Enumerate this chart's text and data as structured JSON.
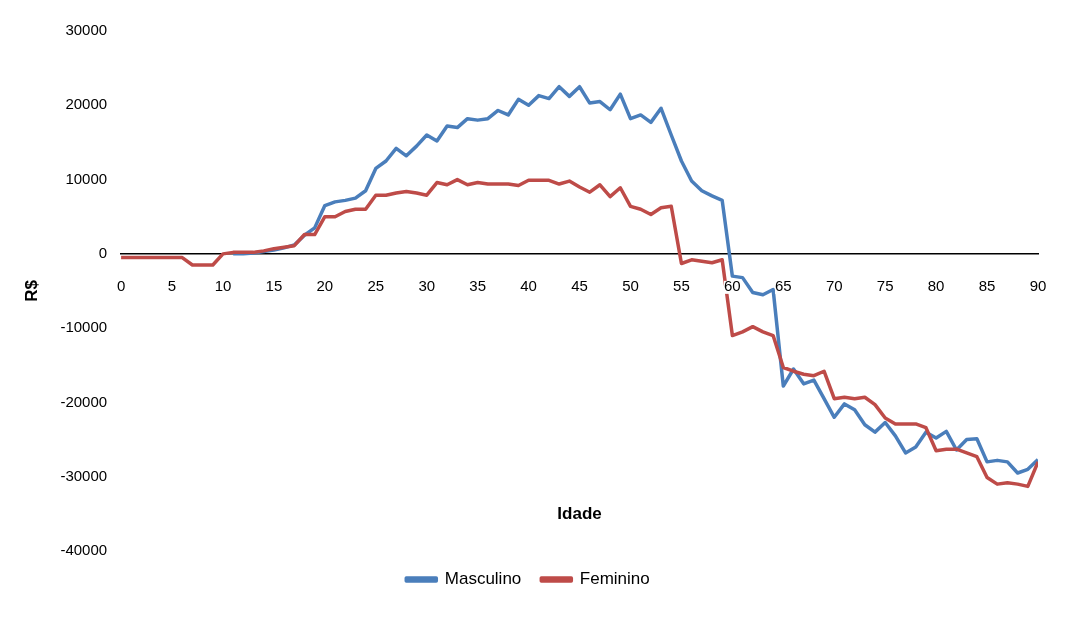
{
  "chart_data": {
    "type": "line",
    "xlabel": "Idade",
    "ylabel": "R$",
    "x": [
      0,
      1,
      2,
      3,
      4,
      5,
      6,
      7,
      8,
      9,
      10,
      11,
      12,
      13,
      14,
      15,
      16,
      17,
      18,
      19,
      20,
      21,
      22,
      23,
      24,
      25,
      26,
      27,
      28,
      29,
      30,
      31,
      32,
      33,
      34,
      35,
      36,
      37,
      38,
      39,
      40,
      41,
      42,
      43,
      44,
      45,
      46,
      47,
      48,
      49,
      50,
      51,
      52,
      53,
      54,
      55,
      56,
      57,
      58,
      59,
      60,
      61,
      62,
      63,
      64,
      65,
      66,
      67,
      68,
      69,
      70,
      71,
      72,
      73,
      74,
      75,
      76,
      77,
      78,
      79,
      80,
      81,
      82,
      83,
      84,
      85,
      86,
      87,
      88,
      89,
      90
    ],
    "series": [
      {
        "name": "Masculino",
        "color": "#4a7ebb",
        "values": [
          null,
          null,
          null,
          null,
          null,
          null,
          null,
          null,
          null,
          null,
          null,
          0,
          0,
          100,
          300,
          500,
          800,
          1200,
          2500,
          3500,
          6500,
          7000,
          7200,
          7500,
          8500,
          11500,
          12500,
          14200,
          13200,
          14500,
          16000,
          15200,
          17200,
          17000,
          18200,
          18000,
          18200,
          19300,
          18700,
          20800,
          20000,
          21300,
          20900,
          22500,
          21200,
          22500,
          20300,
          20500,
          19400,
          21500,
          18200,
          18700,
          17700,
          19600,
          16000,
          12500,
          9800,
          8500,
          7800,
          7200,
          -3000,
          -3200,
          -5200,
          -5500,
          -4800,
          -17800,
          -15500,
          -17500,
          -17000,
          -19500,
          -22000,
          -20200,
          -21000,
          -23000,
          -24000,
          -22700,
          -24500,
          -26800,
          -26000,
          -24000,
          -24800,
          -23900,
          -26400,
          -25000,
          -24900,
          -28000,
          -27800,
          -28000,
          -29500,
          -29000,
          -27700
        ]
      },
      {
        "name": "Feminino",
        "color": "#be4b48",
        "values": [
          -500,
          -500,
          -500,
          -500,
          -500,
          -500,
          -500,
          -1500,
          -1500,
          -1500,
          0,
          200,
          200,
          200,
          400,
          700,
          900,
          1100,
          2600,
          2600,
          5000,
          5000,
          5700,
          6000,
          6000,
          7900,
          7900,
          8200,
          8400,
          8200,
          7900,
          9600,
          9300,
          10000,
          9300,
          9600,
          9400,
          9400,
          9400,
          9200,
          9900,
          9900,
          9900,
          9400,
          9800,
          9000,
          8300,
          9300,
          7700,
          8900,
          6400,
          6000,
          5300,
          6200,
          6400,
          -1300,
          -800,
          -1000,
          -1200,
          -800,
          -11000,
          -10500,
          -9800,
          -10500,
          -11000,
          -15300,
          -15800,
          -16200,
          -16400,
          -15800,
          -19500,
          -19300,
          -19500,
          -19300,
          -20300,
          -22100,
          -22900,
          -22900,
          -22900,
          -23400,
          -26500,
          -26300,
          -26300,
          -26800,
          -27300,
          -30100,
          -31000,
          -30800,
          -31000,
          -31300,
          -28000
        ]
      }
    ],
    "xlim": [
      0,
      90
    ],
    "xticks": [
      0,
      5,
      10,
      15,
      20,
      25,
      30,
      35,
      40,
      45,
      50,
      55,
      60,
      65,
      70,
      75,
      80,
      85,
      90
    ],
    "ylim": [
      -40000,
      30000
    ],
    "yticks": [
      -40000,
      -30000,
      -20000,
      -10000,
      0,
      10000,
      20000,
      30000
    ],
    "grid": false,
    "legend": "bottom",
    "marker": "none",
    "line_style": "solid"
  }
}
